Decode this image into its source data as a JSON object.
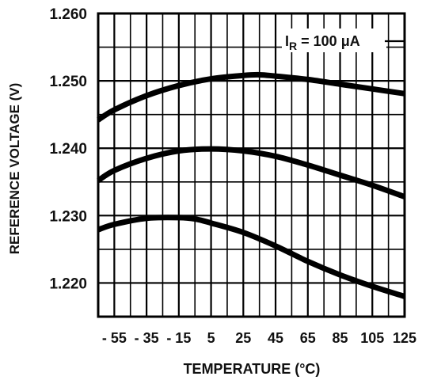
{
  "chart_data": {
    "type": "line",
    "title": "",
    "xlabel": "TEMPERATURE (°C)",
    "ylabel": "REFERENCE VOLTAGE (V)",
    "xlim": [
      -65,
      125
    ],
    "ylim": [
      1.215,
      1.26
    ],
    "x_ticks": [
      -55,
      -35,
      -15,
      5,
      25,
      45,
      65,
      85,
      105,
      125
    ],
    "x_tick_labels": [
      "- 55",
      "- 35",
      "- 15",
      "5",
      "25",
      "45",
      "65",
      "85",
      "105",
      "125"
    ],
    "y_ticks": [
      1.26,
      1.25,
      1.24,
      1.23,
      1.22
    ],
    "y_tick_labels": [
      "1.260",
      "1.250",
      "1.240",
      "1.230",
      "1.220"
    ],
    "grid": true,
    "annotation": {
      "prefix": "I",
      "subscript": "R",
      "suffix": " = 100 μA"
    },
    "colors": {
      "line": "#000000",
      "grid": "#000000",
      "background": "#ffffff"
    },
    "series": [
      {
        "x": [
          -65,
          -55,
          -35,
          -15,
          5,
          25,
          35,
          45,
          65,
          85,
          105,
          125
        ],
        "y": [
          1.2442,
          1.2457,
          1.2478,
          1.2493,
          1.2503,
          1.2508,
          1.2509,
          1.2507,
          1.2502,
          1.2495,
          1.2488,
          1.2481
        ]
      },
      {
        "x": [
          -65,
          -55,
          -35,
          -15,
          5,
          25,
          45,
          65,
          85,
          105,
          125
        ],
        "y": [
          1.2352,
          1.2367,
          1.2385,
          1.2396,
          1.2399,
          1.2396,
          1.2388,
          1.2375,
          1.236,
          1.2345,
          1.2328
        ]
      },
      {
        "x": [
          -65,
          -55,
          -35,
          -15,
          -5,
          5,
          25,
          45,
          65,
          85,
          105,
          125
        ],
        "y": [
          1.2279,
          1.2287,
          1.2296,
          1.2297,
          1.2295,
          1.2289,
          1.2275,
          1.2255,
          1.2232,
          1.2212,
          1.2195,
          1.218
        ]
      }
    ]
  }
}
